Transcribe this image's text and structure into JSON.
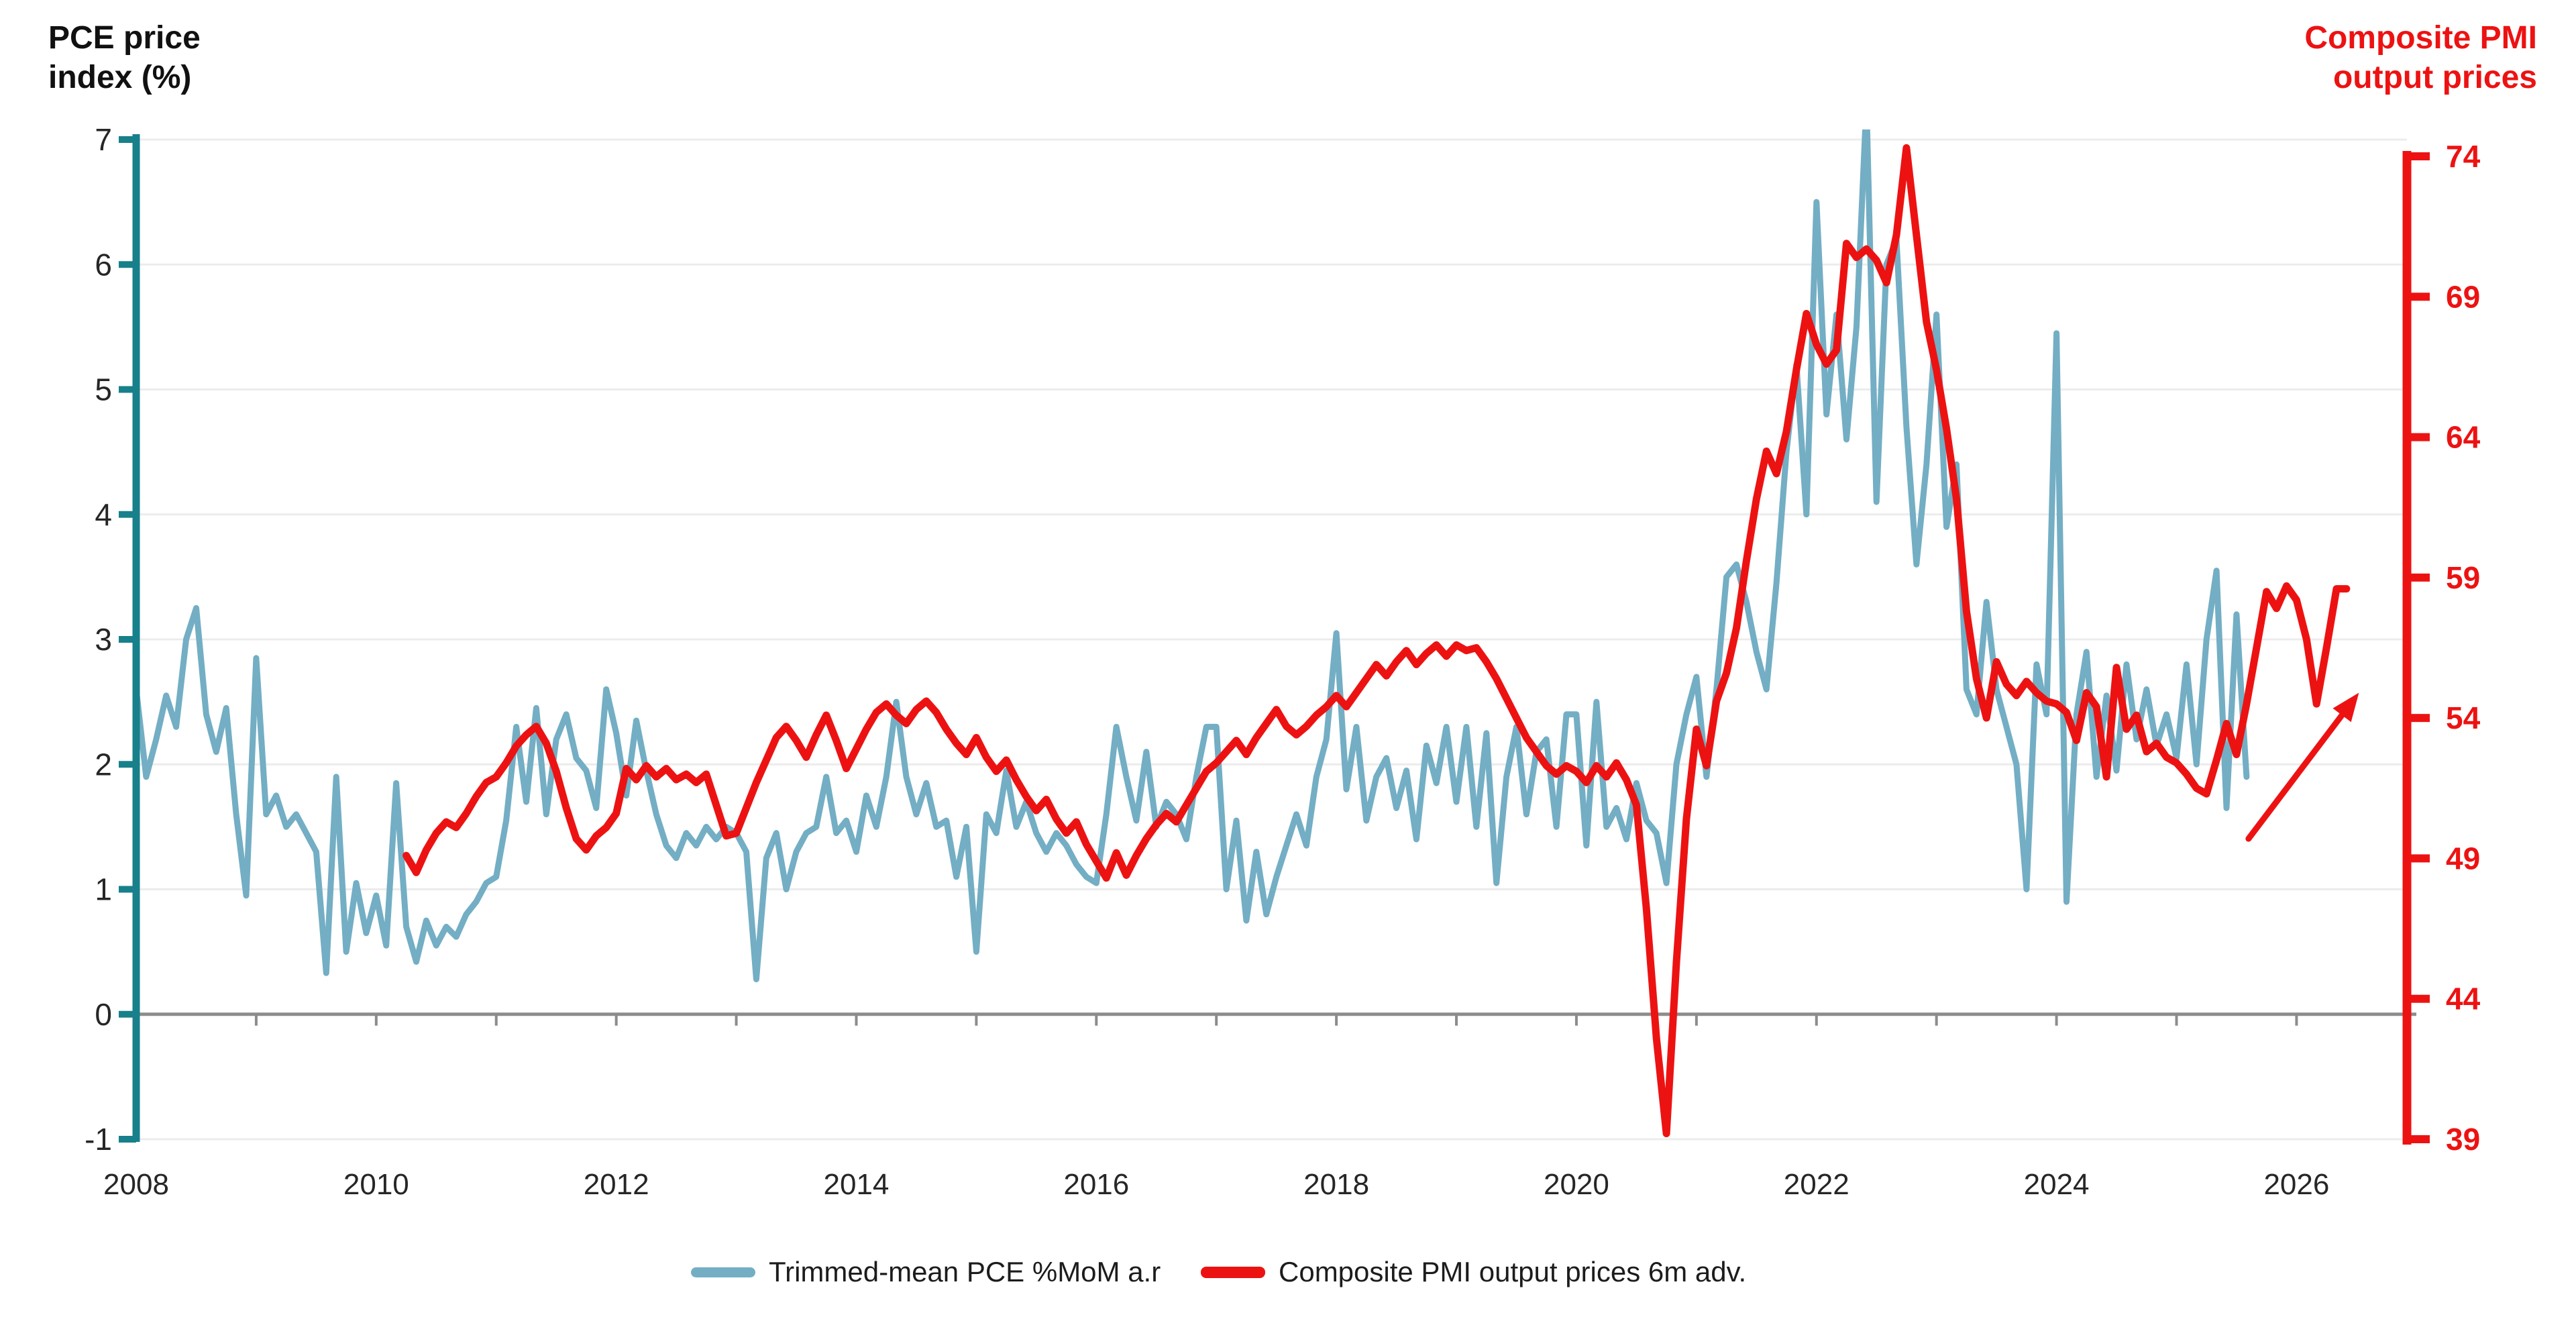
{
  "titles": {
    "left_line1": "PCE price",
    "left_line2": "index (%)",
    "right_line1": "Composite PMI",
    "right_line2": "output prices"
  },
  "legend": {
    "pce": "Trimmed-mean PCE %MoM a.r",
    "pmi": "Composite PMI output prices 6m adv."
  },
  "chart_data": {
    "type": "line",
    "title": "",
    "grid": {
      "horizontal": true,
      "vertical": false,
      "color": "#ececec",
      "zero_line_color": "#8c8c8c"
    },
    "left_axis": {
      "title": "PCE price index (%)",
      "color": "#17808A",
      "tick_label_color": "#262626",
      "ticks": [
        7,
        6,
        5,
        4,
        3,
        2,
        1,
        0,
        -1
      ],
      "range": [
        -1,
        7
      ]
    },
    "right_axis": {
      "title": "Composite PMI output prices",
      "color": "#ED1212",
      "ticks": [
        74,
        69,
        64,
        59,
        54,
        49,
        44,
        39
      ],
      "range": [
        39,
        74
      ]
    },
    "x_axis": {
      "range": [
        2008,
        2026.92
      ],
      "tick_years": [
        2009,
        2010,
        2011,
        2012,
        2013,
        2014,
        2015,
        2016,
        2017,
        2018,
        2019,
        2020,
        2021,
        2022,
        2023,
        2024,
        2025,
        2026
      ],
      "labeled_years": [
        2008,
        2010,
        2012,
        2014,
        2016,
        2018,
        2020,
        2022,
        2024,
        2026
      ],
      "label_color": "#262626"
    },
    "series": [
      {
        "name": "Trimmed-mean PCE %MoM a.r",
        "axis": "left",
        "color": "#73AEC4",
        "stroke_width": 9,
        "start_year": 2008,
        "start_month": 1,
        "frequency": "monthly",
        "values": [
          2.6,
          1.9,
          2.2,
          2.55,
          2.3,
          3.0,
          3.25,
          2.4,
          2.1,
          2.45,
          1.6,
          0.95,
          2.85,
          1.6,
          1.75,
          1.5,
          1.6,
          1.45,
          1.3,
          0.33,
          1.9,
          0.5,
          1.05,
          0.65,
          0.95,
          0.55,
          1.85,
          0.7,
          0.42,
          0.75,
          0.55,
          0.7,
          0.62,
          0.8,
          0.9,
          1.05,
          1.1,
          1.55,
          2.3,
          1.7,
          2.45,
          1.6,
          2.2,
          2.4,
          2.05,
          1.95,
          1.65,
          2.6,
          2.25,
          1.75,
          2.35,
          1.95,
          1.6,
          1.35,
          1.25,
          1.45,
          1.35,
          1.5,
          1.4,
          1.5,
          1.45,
          1.3,
          0.28,
          1.25,
          1.45,
          1.0,
          1.3,
          1.45,
          1.5,
          1.9,
          1.45,
          1.55,
          1.3,
          1.75,
          1.5,
          1.9,
          2.5,
          1.9,
          1.6,
          1.85,
          1.5,
          1.55,
          1.1,
          1.5,
          0.5,
          1.6,
          1.45,
          1.95,
          1.5,
          1.7,
          1.45,
          1.3,
          1.45,
          1.35,
          1.2,
          1.1,
          1.05,
          1.6,
          2.3,
          1.9,
          1.55,
          2.1,
          1.5,
          1.7,
          1.6,
          1.4,
          1.9,
          2.3,
          2.3,
          1.0,
          1.55,
          0.75,
          1.3,
          0.8,
          1.1,
          1.35,
          1.6,
          1.35,
          1.9,
          2.2,
          3.05,
          1.8,
          2.3,
          1.55,
          1.9,
          2.05,
          1.65,
          1.95,
          1.4,
          2.15,
          1.85,
          2.3,
          1.7,
          2.3,
          1.5,
          2.25,
          1.05,
          1.9,
          2.3,
          1.6,
          2.1,
          2.2,
          1.5,
          2.4,
          2.4,
          1.35,
          2.5,
          1.5,
          1.65,
          1.4,
          1.85,
          1.55,
          1.45,
          1.05,
          2.0,
          2.4,
          2.7,
          1.9,
          2.6,
          3.5,
          3.6,
          3.3,
          2.9,
          2.6,
          3.45,
          4.5,
          5.2,
          4.0,
          6.5,
          4.8,
          5.6,
          4.6,
          5.5,
          7.3,
          4.1,
          6.0,
          6.2,
          4.7,
          3.6,
          4.4,
          5.6,
          3.9,
          4.4,
          2.6,
          2.4,
          3.3,
          2.6,
          2.3,
          2.0,
          1.0,
          2.8,
          2.4,
          5.45,
          0.9,
          2.4,
          2.9,
          1.9,
          2.55,
          1.95,
          2.8,
          2.2,
          2.6,
          2.15,
          2.4,
          2.05,
          2.8,
          2.0,
          3.0,
          3.55,
          1.65,
          3.2,
          1.9
        ]
      },
      {
        "name": "Composite PMI output prices 6m adv.",
        "axis": "right",
        "color": "#ED1212",
        "stroke_width": 11,
        "start_year": 2010,
        "start_month": 4,
        "frequency": "monthly",
        "values": [
          49.1,
          48.5,
          49.3,
          49.9,
          50.3,
          50.1,
          50.6,
          51.2,
          51.7,
          51.9,
          52.4,
          53.0,
          53.4,
          53.7,
          53.1,
          52.1,
          50.8,
          49.7,
          49.3,
          49.8,
          50.1,
          50.6,
          52.2,
          51.8,
          52.3,
          51.9,
          52.2,
          51.8,
          52.0,
          51.7,
          52.0,
          50.9,
          49.8,
          49.9,
          50.8,
          51.7,
          52.5,
          53.3,
          53.7,
          53.2,
          52.6,
          53.4,
          54.1,
          53.2,
          52.2,
          52.9,
          53.6,
          54.2,
          54.5,
          54.1,
          53.8,
          54.3,
          54.6,
          54.2,
          53.6,
          53.1,
          52.7,
          53.3,
          52.6,
          52.1,
          52.5,
          51.8,
          51.2,
          50.7,
          51.1,
          50.4,
          49.9,
          50.3,
          49.5,
          48.9,
          48.3,
          49.2,
          48.4,
          49.1,
          49.7,
          50.2,
          50.6,
          50.3,
          50.9,
          51.5,
          52.1,
          52.4,
          52.8,
          53.2,
          52.7,
          53.3,
          53.8,
          54.3,
          53.7,
          53.4,
          53.7,
          54.1,
          54.4,
          54.8,
          54.4,
          54.9,
          55.4,
          55.9,
          55.5,
          56.0,
          56.4,
          55.9,
          56.3,
          56.6,
          56.2,
          56.6,
          56.4,
          56.5,
          56.0,
          55.4,
          54.7,
          54.0,
          53.3,
          52.8,
          52.3,
          52.0,
          52.3,
          52.1,
          51.7,
          52.3,
          51.9,
          52.4,
          51.8,
          50.9,
          47.2,
          42.6,
          39.2,
          45.3,
          50.4,
          53.6,
          52.3,
          54.6,
          55.6,
          57.2,
          59.6,
          61.8,
          63.5,
          62.7,
          64.2,
          66.4,
          68.4,
          67.3,
          66.6,
          67.1,
          70.9,
          70.4,
          70.7,
          70.3,
          69.5,
          71.2,
          74.3,
          71.2,
          68.1,
          66.4,
          64.3,
          61.8,
          57.8,
          55.4,
          54.0,
          56.0,
          55.2,
          54.8,
          55.3,
          54.9,
          54.6,
          54.5,
          54.2,
          53.2,
          54.9,
          54.4,
          51.9,
          55.8,
          53.6,
          54.1,
          52.8,
          53.1,
          52.6,
          52.4,
          52.0,
          51.5,
          51.3,
          52.5,
          53.8,
          52.7,
          54.5,
          56.5,
          58.5,
          57.9,
          58.7,
          58.2,
          56.8,
          54.5,
          56.5,
          58.6,
          58.6
        ]
      }
    ],
    "annotation_arrow": {
      "axis": "right",
      "from_year": 2025.6,
      "from_value": 49.7,
      "to_year": 2026.52,
      "to_value": 54.9,
      "color": "#ED1212"
    },
    "legend_position": "bottom",
    "legend_entries": [
      "Trimmed-mean PCE %MoM a.r",
      "Composite PMI output prices 6m adv."
    ]
  }
}
